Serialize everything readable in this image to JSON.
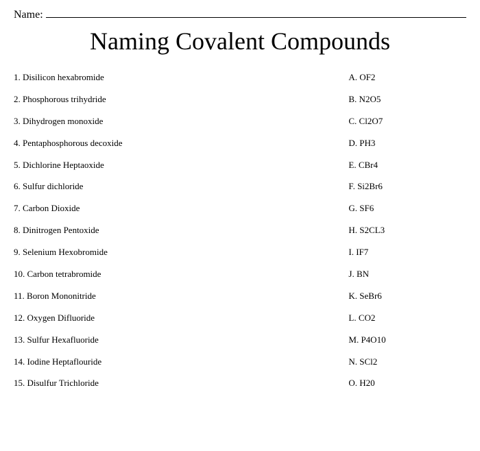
{
  "name_label": "Name:",
  "title": "Naming Covalent Compounds",
  "left_items": [
    "1. Disilicon hexabromide",
    "2. Phosphorous trihydride",
    "3. Dihydrogen monoxide",
    "4. Pentaphosphorous decoxide",
    "5. Dichlorine Heptaoxide",
    "6. Sulfur dichloride",
    "7. Carbon Dioxide",
    "8. Dinitrogen Pentoxide",
    "9. Selenium Hexobromide",
    "10. Carbon tetrabromide",
    "11. Boron Mononitride",
    "12. Oxygen Difluoride",
    "13. Sulfur Hexafluoride",
    "14. Iodine Heptaflouride",
    "15. Disulfur Trichloride"
  ],
  "right_items": [
    "A. OF2",
    "B. N2O5",
    "C. Cl2O7",
    "D. PH3",
    "E. CBr4",
    "F. Si2Br6",
    "G. SF6",
    "H. S2CL3",
    "I. IF7",
    "J. BN",
    "K. SeBr6",
    "L. CO2",
    "M. P4O10",
    "N. SCl2",
    "O. H20"
  ]
}
